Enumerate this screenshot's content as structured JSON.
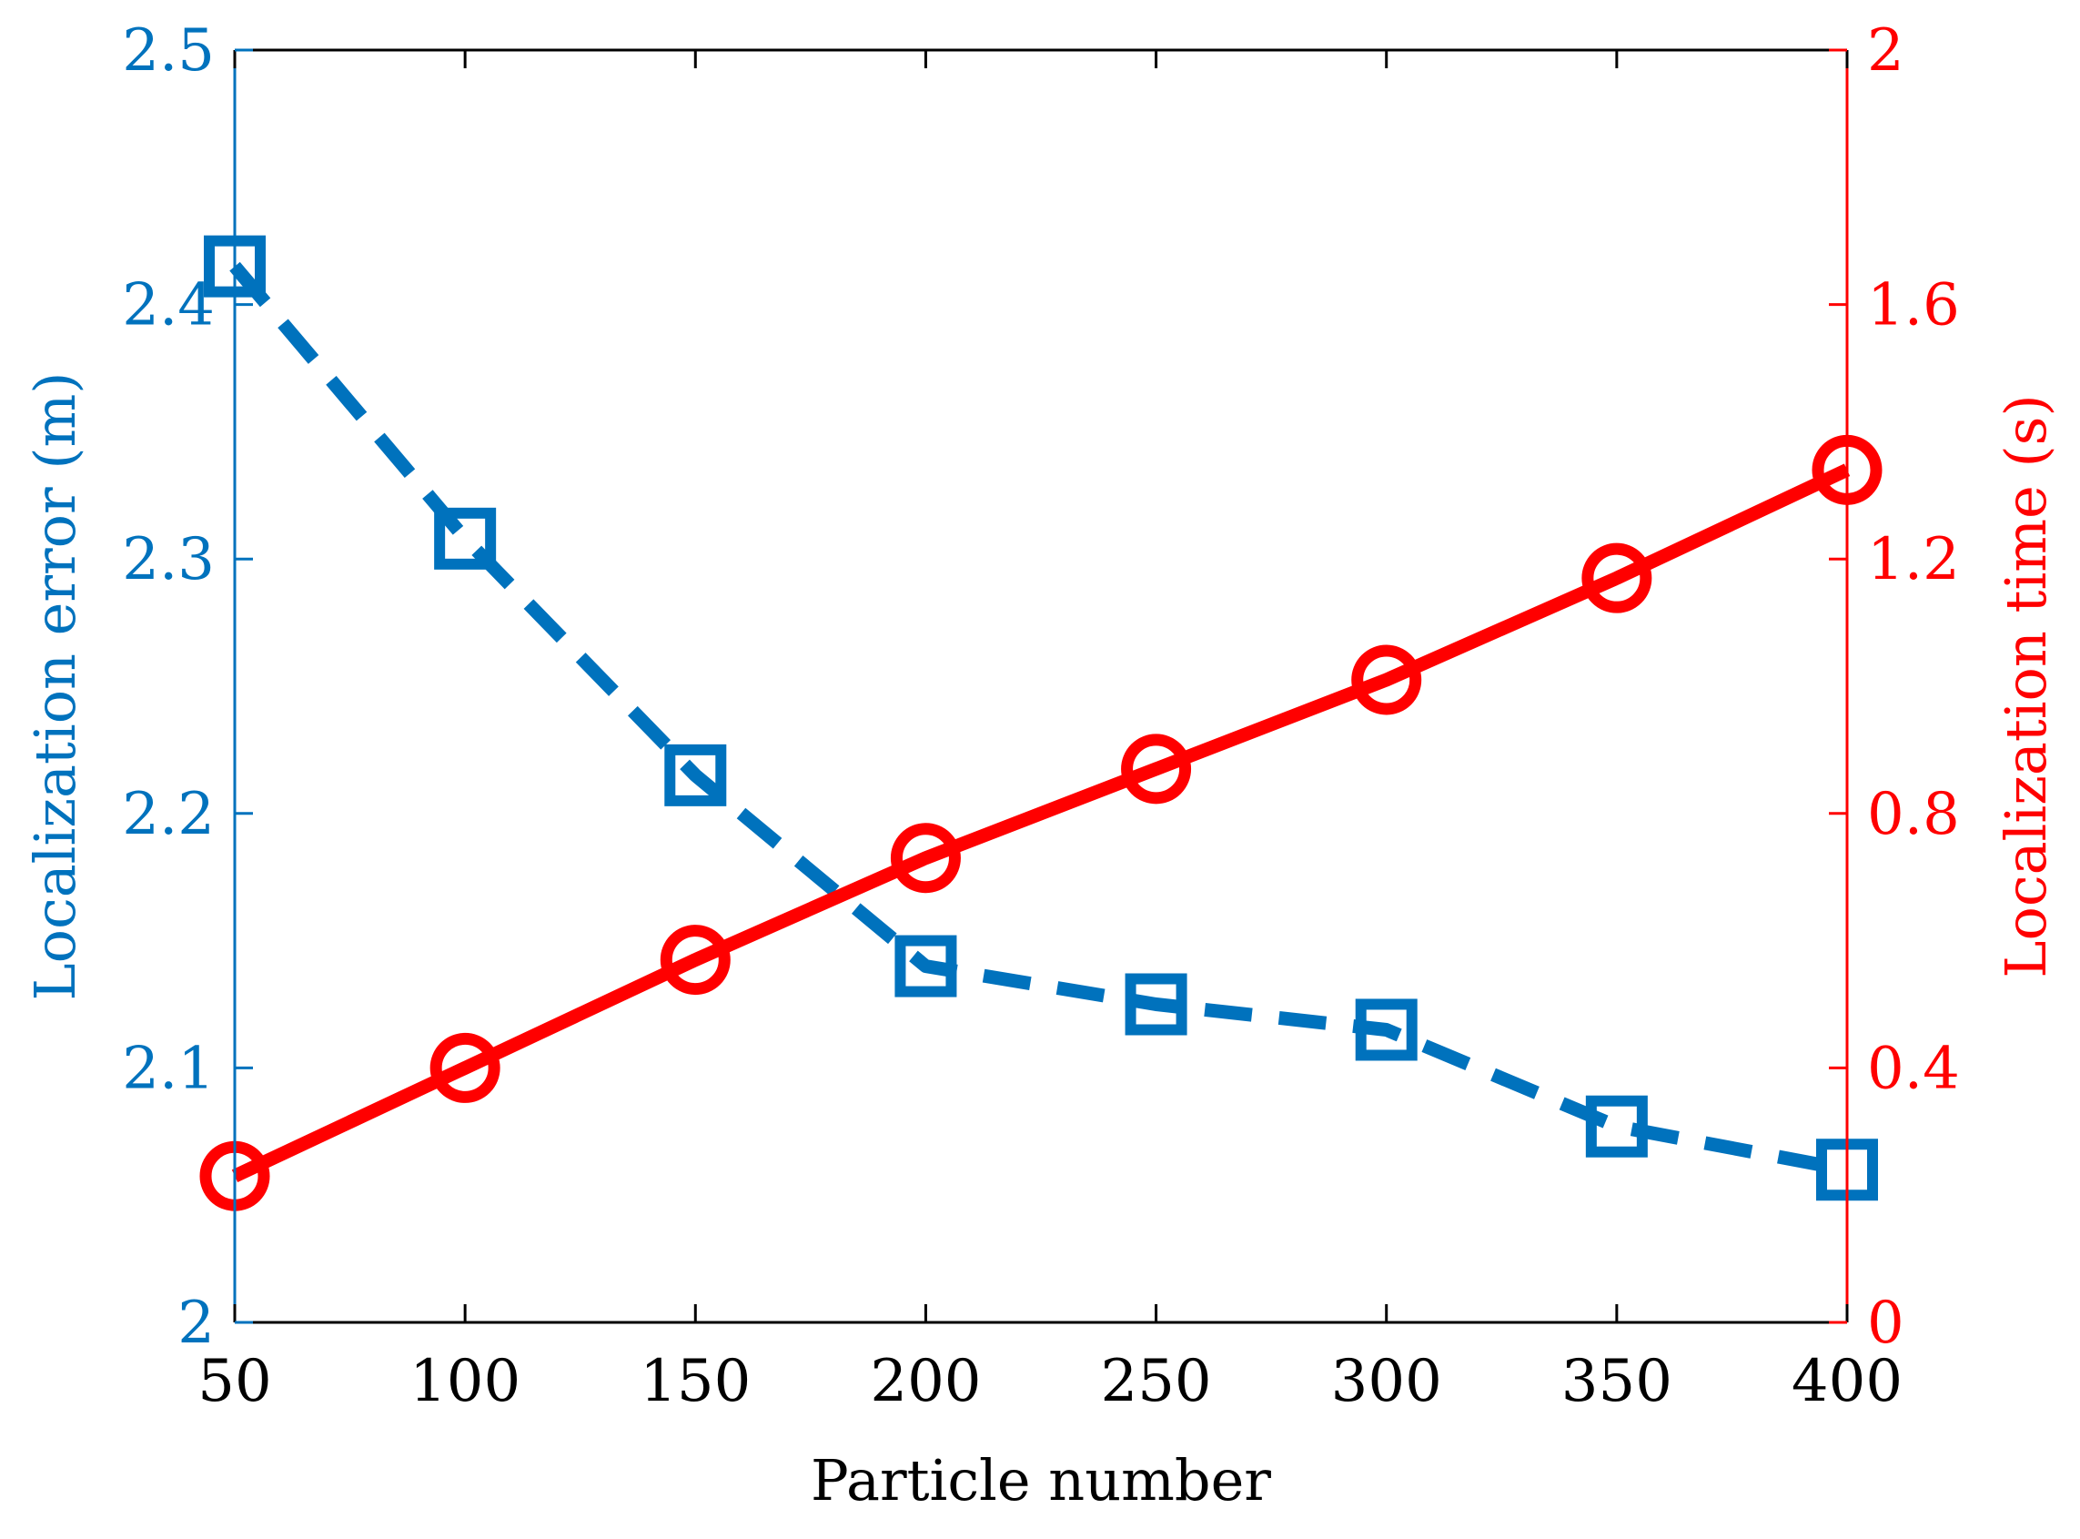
{
  "chart_data": {
    "type": "line",
    "title": "",
    "xlabel": "Particle number",
    "x": [
      50,
      100,
      150,
      200,
      250,
      300,
      350,
      400
    ],
    "xlim": [
      50,
      400
    ],
    "xticks": [
      "50",
      "100",
      "150",
      "200",
      "250",
      "300",
      "350",
      "400"
    ],
    "grid": false,
    "legend": "none",
    "left_axis": {
      "label": "Localization error (m)",
      "color": "#0072BD",
      "ylim": [
        2,
        2.5
      ],
      "ticks": [
        2,
        2.1,
        2.2,
        2.3,
        2.4,
        2.5
      ],
      "tick_labels": [
        "2",
        "2.1",
        "2.2",
        "2.3",
        "2.4",
        "2.5"
      ]
    },
    "right_axis": {
      "label": "Localization time (s)",
      "color": "#FF0000",
      "ylim": [
        0,
        2
      ],
      "ticks": [
        0,
        0.4,
        0.8,
        1.2,
        1.6,
        2
      ],
      "tick_labels": [
        "0",
        "0.4",
        "0.8",
        "1.2",
        "1.6",
        "2"
      ]
    },
    "series": [
      {
        "name": "Localization error (m)",
        "axis": "left",
        "color": "#0072BD",
        "line_style": "dashed",
        "marker": "square",
        "values": [
          2.415,
          2.308,
          2.215,
          2.14,
          2.125,
          2.115,
          2.077,
          2.06
        ]
      },
      {
        "name": "Localization time (s)",
        "axis": "right",
        "color": "#FF0000",
        "line_style": "solid",
        "marker": "circle",
        "values": [
          0.23,
          0.4,
          0.57,
          0.73,
          0.87,
          1.01,
          1.17,
          1.34
        ]
      }
    ]
  }
}
